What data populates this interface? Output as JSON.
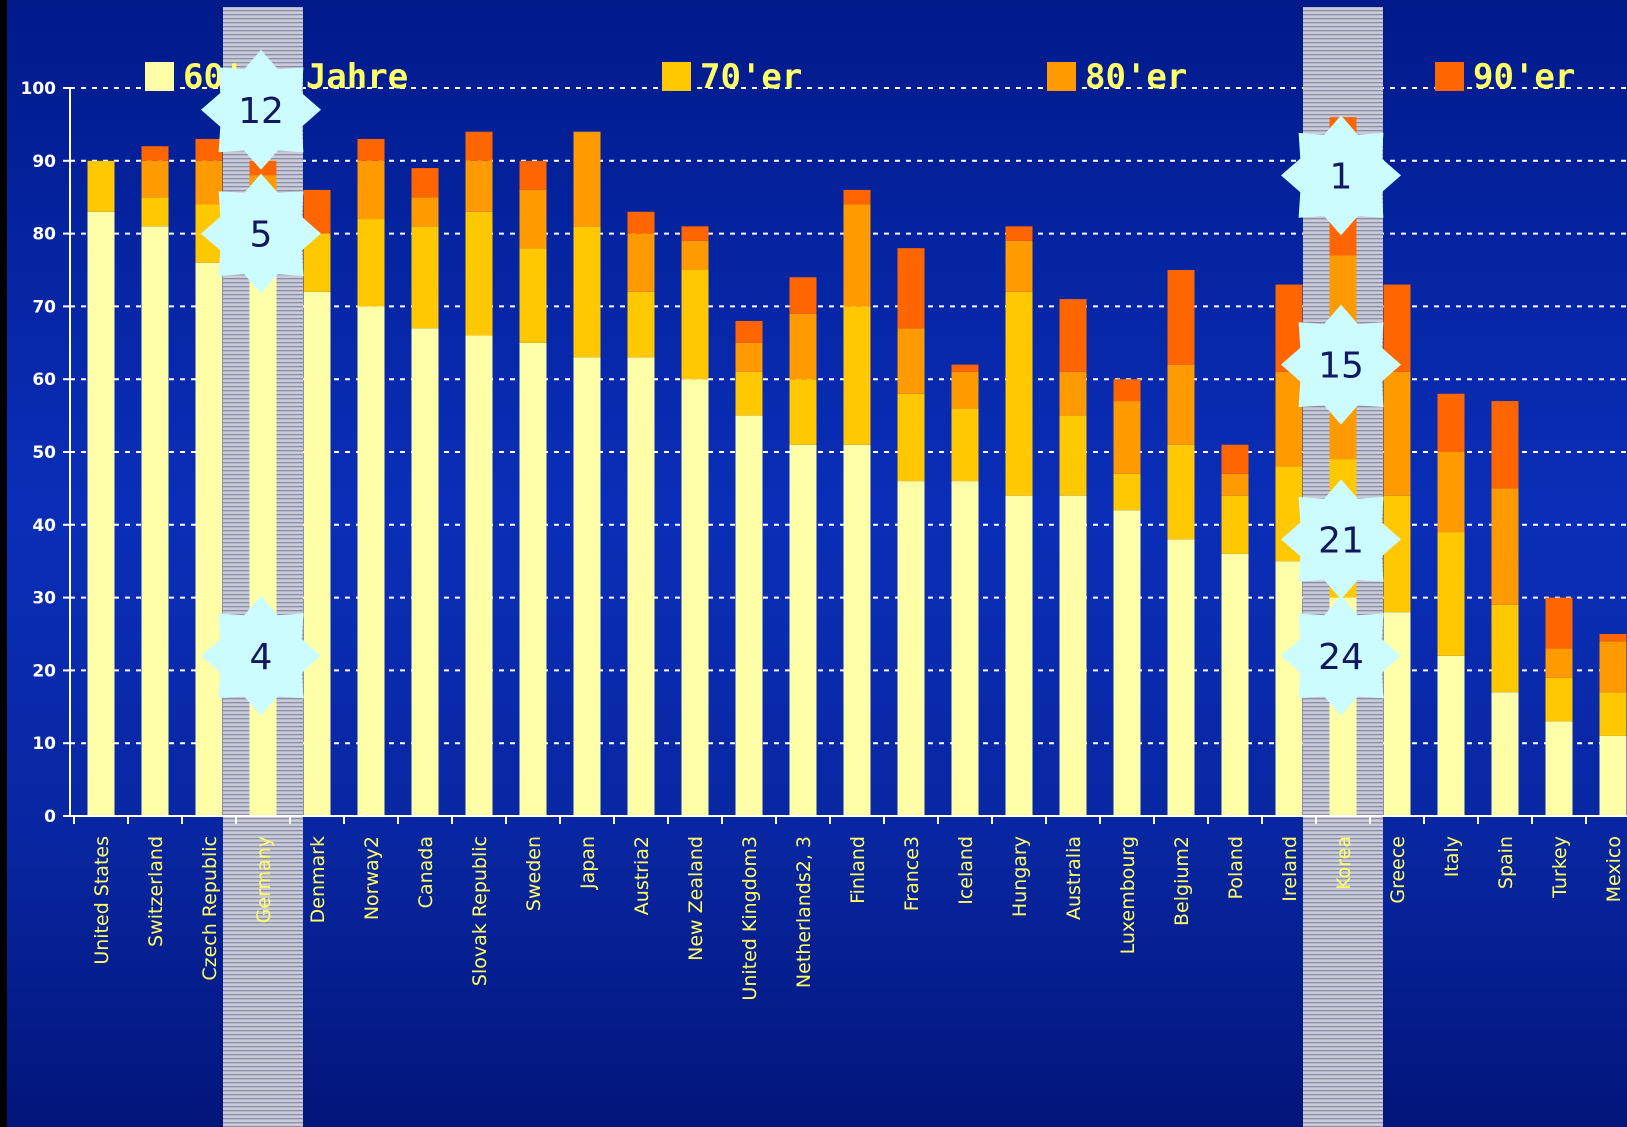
{
  "chart_data": {
    "type": "bar",
    "stacked": true,
    "ylim": [
      0,
      100
    ],
    "yticks": [
      0,
      10,
      20,
      30,
      40,
      50,
      60,
      70,
      80,
      90,
      100
    ],
    "grid": "horizontal dashed",
    "legend_position": "top",
    "categories": [
      "United States",
      "Switzerland",
      "Czech Republic",
      "Germany",
      "Denmark",
      "Norway2",
      "Canada",
      "Slovak Republic",
      "Sweden",
      "Japan",
      "Austria2",
      "New Zealand",
      "United Kingdom3",
      "Netherlands2, 3",
      "Finland",
      "France3",
      "Iceland",
      "Hungary",
      "Australia",
      "Luxembourg",
      "Belgium2",
      "Poland",
      "Ireland",
      "Korea",
      "Greece",
      "Italy",
      "Spain",
      "Turkey",
      "Mexico"
    ],
    "series": [
      {
        "name": "60'er Jahre",
        "color": "#ffffa8",
        "values": [
          83,
          81,
          76,
          78,
          72,
          70,
          67,
          66,
          65,
          63,
          63,
          60,
          55,
          51,
          51,
          46,
          46,
          44,
          44,
          42,
          38,
          36,
          35,
          30,
          28,
          22,
          17,
          13,
          11
        ]
      },
      {
        "name": "70'er",
        "color": "#ffc800",
        "values": [
          7,
          4,
          8,
          8,
          8,
          12,
          14,
          17,
          13,
          18,
          9,
          15,
          6,
          9,
          19,
          12,
          10,
          28,
          11,
          5,
          13,
          8,
          13,
          19,
          16,
          17,
          12,
          6,
          6
        ]
      },
      {
        "name": "80'er",
        "color": "#ff9a00",
        "values": [
          0,
          5,
          6,
          2,
          0,
          8,
          4,
          7,
          8,
          13,
          8,
          4,
          4,
          9,
          14,
          9,
          5,
          7,
          6,
          10,
          11,
          3,
          13,
          28,
          17,
          11,
          16,
          4,
          7
        ]
      },
      {
        "name": "90'er",
        "color": "#ff6600",
        "values": [
          0,
          2,
          3,
          2,
          6,
          3,
          4,
          4,
          4,
          0,
          3,
          2,
          3,
          5,
          2,
          11,
          1,
          2,
          10,
          3,
          13,
          4,
          12,
          19,
          12,
          8,
          12,
          7,
          1
        ]
      }
    ],
    "highlighted_categories": [
      "Germany",
      "Korea"
    ],
    "rank_badges": [
      {
        "category": "Germany",
        "label": "12",
        "y": 97
      },
      {
        "category": "Germany",
        "label": "5",
        "y": 80
      },
      {
        "category": "Germany",
        "label": "4",
        "y": 22
      },
      {
        "category": "Korea",
        "label": "1",
        "y": 88
      },
      {
        "category": "Korea",
        "label": "15",
        "y": 62
      },
      {
        "category": "Korea",
        "label": "21",
        "y": 38
      },
      {
        "category": "Korea",
        "label": "24",
        "y": 22
      }
    ]
  }
}
